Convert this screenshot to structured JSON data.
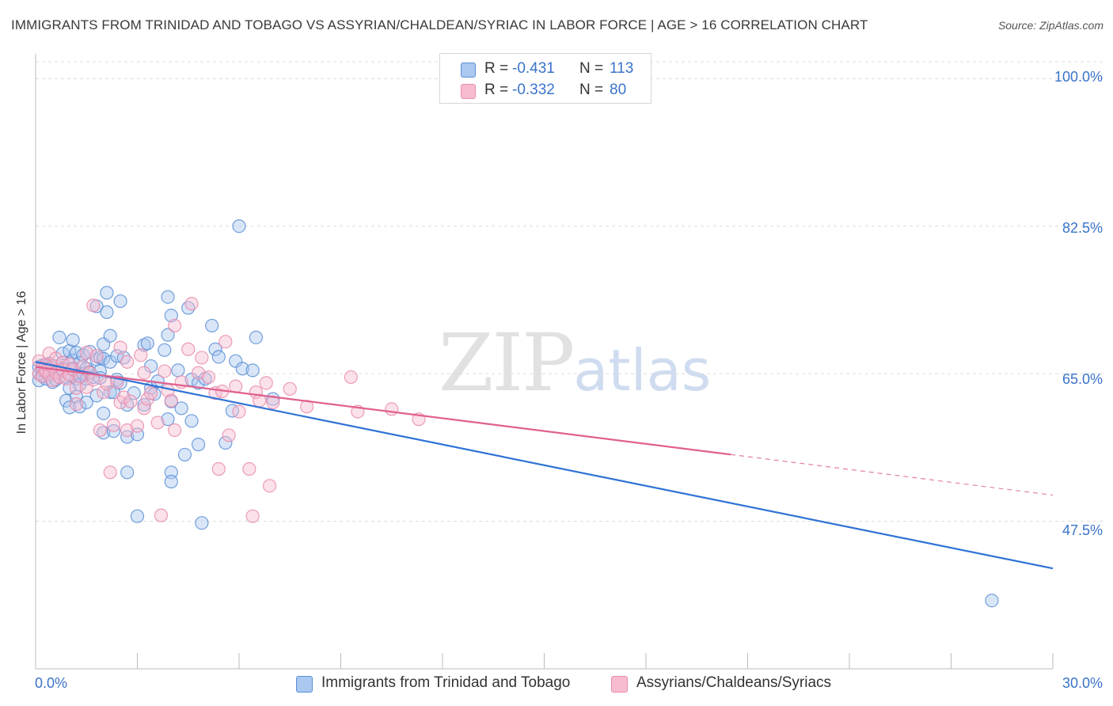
{
  "title": "IMMIGRANTS FROM TRINIDAD AND TOBAGO VS ASSYRIAN/CHALDEAN/SYRIAC IN LABOR FORCE | AGE > 16 CORRELATION CHART",
  "source": "Source: ZipAtlas.com",
  "watermark": {
    "zip": "ZIP",
    "atlas": "atlas"
  },
  "legend_top": [
    {
      "r_label": "R =",
      "r_value": "-0.431",
      "n_label": "N =",
      "n_value": "113"
    },
    {
      "r_label": "R =",
      "r_value": "-0.332",
      "n_label": "N =",
      "n_value": "80"
    }
  ],
  "y_tick_labels": [
    "100.0%",
    "82.5%",
    "65.0%",
    "47.5%"
  ],
  "x_tick_labels": {
    "min": "0.0%",
    "max": "30.0%"
  },
  "chart_data": {
    "type": "scatter",
    "title": "IMMIGRANTS FROM TRINIDAD AND TOBAGO VS ASSYRIAN/CHALDEAN/SYRIAC IN LABOR FORCE | AGE > 16 CORRELATION CHART",
    "xlabel": "",
    "ylabel": "In Labor Force | Age > 16",
    "xlim": [
      0,
      30
    ],
    "ylim": [
      30,
      102
    ],
    "y_ticks": [
      47.5,
      65.0,
      82.5,
      100.0
    ],
    "x_ticks": [
      0,
      3,
      6,
      9,
      12,
      15,
      18,
      21,
      24,
      27,
      30
    ],
    "grid": "horizontal dashed",
    "legend_placement": "bottom-center",
    "colors": {
      "series1_fill": "#aac8f0",
      "series1_stroke": "#5b8fd6",
      "series1_line": "#2f72d6",
      "series2_fill": "#f7bcd0",
      "series2_stroke": "#e88cab",
      "series2_line": "#e0608e",
      "tick_text": "#3a73c9",
      "grid": "#dcdcdc"
    },
    "series": [
      {
        "name": "Immigrants from Trinidad and Tobago",
        "r": -0.431,
        "n": 113,
        "trend": {
          "x": [
            0,
            30
          ],
          "y": [
            66.4,
            41.9
          ],
          "dashed_from": null
        },
        "points": [
          [
            0.1,
            65.8
          ],
          [
            0.1,
            65.0
          ],
          [
            0.1,
            64.2
          ],
          [
            0.2,
            66.0
          ],
          [
            0.2,
            65.4
          ],
          [
            0.2,
            64.8
          ],
          [
            0.3,
            65.9
          ],
          [
            0.3,
            64.4
          ],
          [
            0.3,
            65.2
          ],
          [
            0.3,
            65.6
          ],
          [
            0.4,
            66.2
          ],
          [
            0.4,
            64.9
          ],
          [
            0.4,
            65.4
          ],
          [
            0.5,
            64.0
          ],
          [
            0.5,
            65.7
          ],
          [
            0.5,
            65.0
          ],
          [
            0.6,
            64.3
          ],
          [
            0.6,
            65.9
          ],
          [
            0.7,
            64.6
          ],
          [
            0.7,
            65.2
          ],
          [
            0.7,
            69.3
          ],
          [
            0.8,
            66.3
          ],
          [
            0.8,
            65.6
          ],
          [
            0.8,
            67.4
          ],
          [
            0.9,
            64.6
          ],
          [
            0.9,
            61.8
          ],
          [
            1.0,
            67.7
          ],
          [
            1.0,
            64.9
          ],
          [
            1.0,
            63.3
          ],
          [
            1.0,
            61.0
          ],
          [
            1.1,
            69.0
          ],
          [
            1.1,
            66.6
          ],
          [
            1.1,
            65.6
          ],
          [
            1.2,
            64.4
          ],
          [
            1.2,
            62.3
          ],
          [
            1.2,
            67.5
          ],
          [
            1.3,
            66.3
          ],
          [
            1.3,
            64.9
          ],
          [
            1.3,
            63.7
          ],
          [
            1.3,
            61.1
          ],
          [
            1.4,
            65.0
          ],
          [
            1.4,
            67.2
          ],
          [
            1.5,
            65.6
          ],
          [
            1.5,
            64.4
          ],
          [
            1.5,
            61.6
          ],
          [
            1.6,
            67.6
          ],
          [
            1.6,
            65.2
          ],
          [
            1.7,
            64.6
          ],
          [
            1.8,
            73.0
          ],
          [
            1.8,
            66.7
          ],
          [
            1.8,
            62.4
          ],
          [
            1.9,
            66.9
          ],
          [
            1.9,
            65.3
          ],
          [
            1.9,
            64.5
          ],
          [
            2.0,
            68.5
          ],
          [
            2.0,
            66.8
          ],
          [
            2.0,
            60.3
          ],
          [
            2.0,
            58.0
          ],
          [
            2.1,
            74.6
          ],
          [
            2.1,
            72.3
          ],
          [
            2.2,
            69.5
          ],
          [
            2.2,
            66.4
          ],
          [
            2.2,
            62.8
          ],
          [
            2.3,
            62.8
          ],
          [
            2.3,
            58.2
          ],
          [
            2.4,
            67.1
          ],
          [
            2.4,
            64.3
          ],
          [
            2.5,
            73.6
          ],
          [
            2.5,
            63.9
          ],
          [
            2.6,
            66.9
          ],
          [
            2.7,
            61.3
          ],
          [
            2.7,
            57.5
          ],
          [
            2.7,
            53.3
          ],
          [
            2.9,
            62.7
          ],
          [
            3.0,
            57.8
          ],
          [
            3.0,
            48.1
          ],
          [
            3.2,
            68.4
          ],
          [
            3.2,
            61.3
          ],
          [
            3.3,
            68.6
          ],
          [
            3.4,
            63.3
          ],
          [
            3.4,
            65.9
          ],
          [
            3.5,
            62.6
          ],
          [
            3.6,
            64.1
          ],
          [
            3.8,
            67.8
          ],
          [
            3.9,
            59.6
          ],
          [
            3.9,
            74.1
          ],
          [
            3.9,
            69.6
          ],
          [
            4.0,
            71.9
          ],
          [
            4.0,
            61.7
          ],
          [
            4.0,
            53.3
          ],
          [
            4.0,
            52.2
          ],
          [
            4.2,
            65.4
          ],
          [
            4.3,
            60.9
          ],
          [
            4.4,
            55.4
          ],
          [
            4.5,
            72.8
          ],
          [
            4.6,
            64.3
          ],
          [
            4.6,
            59.4
          ],
          [
            4.8,
            56.6
          ],
          [
            4.8,
            63.9
          ],
          [
            4.9,
            47.3
          ],
          [
            5.0,
            64.4
          ],
          [
            5.2,
            70.7
          ],
          [
            5.3,
            67.9
          ],
          [
            5.4,
            67.0
          ],
          [
            5.6,
            56.8
          ],
          [
            5.8,
            60.6
          ],
          [
            5.9,
            66.5
          ],
          [
            6.0,
            82.5
          ],
          [
            6.1,
            65.6
          ],
          [
            6.4,
            65.4
          ],
          [
            6.5,
            69.3
          ],
          [
            7.0,
            62.0
          ],
          [
            28.2,
            38.1
          ]
        ]
      },
      {
        "name": "Assyrians/Chaldeans/Syriacs",
        "r": -0.332,
        "n": 80,
        "trend": {
          "x": [
            0,
            30
          ],
          "y": [
            65.8,
            50.6
          ],
          "dashed_from": 20.5
        },
        "points": [
          [
            0.1,
            66.5
          ],
          [
            0.1,
            65.0
          ],
          [
            0.2,
            65.7
          ],
          [
            0.2,
            64.7
          ],
          [
            0.3,
            66.1
          ],
          [
            0.3,
            65.3
          ],
          [
            0.4,
            67.4
          ],
          [
            0.4,
            64.9
          ],
          [
            0.5,
            65.9
          ],
          [
            0.5,
            64.2
          ],
          [
            0.6,
            66.8
          ],
          [
            0.6,
            65.1
          ],
          [
            0.7,
            64.6
          ],
          [
            0.8,
            66.3
          ],
          [
            0.8,
            65.4
          ],
          [
            0.9,
            64.4
          ],
          [
            1.0,
            66.1
          ],
          [
            1.0,
            64.9
          ],
          [
            1.1,
            65.5
          ],
          [
            1.2,
            63.3
          ],
          [
            1.2,
            61.4
          ],
          [
            1.3,
            64.7
          ],
          [
            1.4,
            65.9
          ],
          [
            1.5,
            67.5
          ],
          [
            1.5,
            63.4
          ],
          [
            1.6,
            65.1
          ],
          [
            1.7,
            73.1
          ],
          [
            1.7,
            64.3
          ],
          [
            1.8,
            67.1
          ],
          [
            1.9,
            58.3
          ],
          [
            2.0,
            62.8
          ],
          [
            2.1,
            63.8
          ],
          [
            2.2,
            53.3
          ],
          [
            2.3,
            58.9
          ],
          [
            2.4,
            64.0
          ],
          [
            2.5,
            68.1
          ],
          [
            2.5,
            61.6
          ],
          [
            2.6,
            62.2
          ],
          [
            2.7,
            66.4
          ],
          [
            2.7,
            58.3
          ],
          [
            2.8,
            61.7
          ],
          [
            3.0,
            58.8
          ],
          [
            3.1,
            67.2
          ],
          [
            3.2,
            65.1
          ],
          [
            3.2,
            60.9
          ],
          [
            3.3,
            62.0
          ],
          [
            3.4,
            62.7
          ],
          [
            3.6,
            59.2
          ],
          [
            3.7,
            48.2
          ],
          [
            3.8,
            65.3
          ],
          [
            3.9,
            63.0
          ],
          [
            4.0,
            61.8
          ],
          [
            4.1,
            70.7
          ],
          [
            4.1,
            58.3
          ],
          [
            4.3,
            64.0
          ],
          [
            4.5,
            67.9
          ],
          [
            4.6,
            73.3
          ],
          [
            4.8,
            65.1
          ],
          [
            4.9,
            66.9
          ],
          [
            5.1,
            64.6
          ],
          [
            5.3,
            62.7
          ],
          [
            5.4,
            53.7
          ],
          [
            5.5,
            62.9
          ],
          [
            5.6,
            68.8
          ],
          [
            5.7,
            57.7
          ],
          [
            5.9,
            63.5
          ],
          [
            6.0,
            60.5
          ],
          [
            6.3,
            53.7
          ],
          [
            6.4,
            48.1
          ],
          [
            6.5,
            62.8
          ],
          [
            6.6,
            61.8
          ],
          [
            6.8,
            63.9
          ],
          [
            6.9,
            51.7
          ],
          [
            7.0,
            61.6
          ],
          [
            7.5,
            63.2
          ],
          [
            8.0,
            61.1
          ],
          [
            9.3,
            64.6
          ],
          [
            9.5,
            60.5
          ],
          [
            10.5,
            60.8
          ],
          [
            11.3,
            59.6
          ]
        ]
      }
    ]
  }
}
